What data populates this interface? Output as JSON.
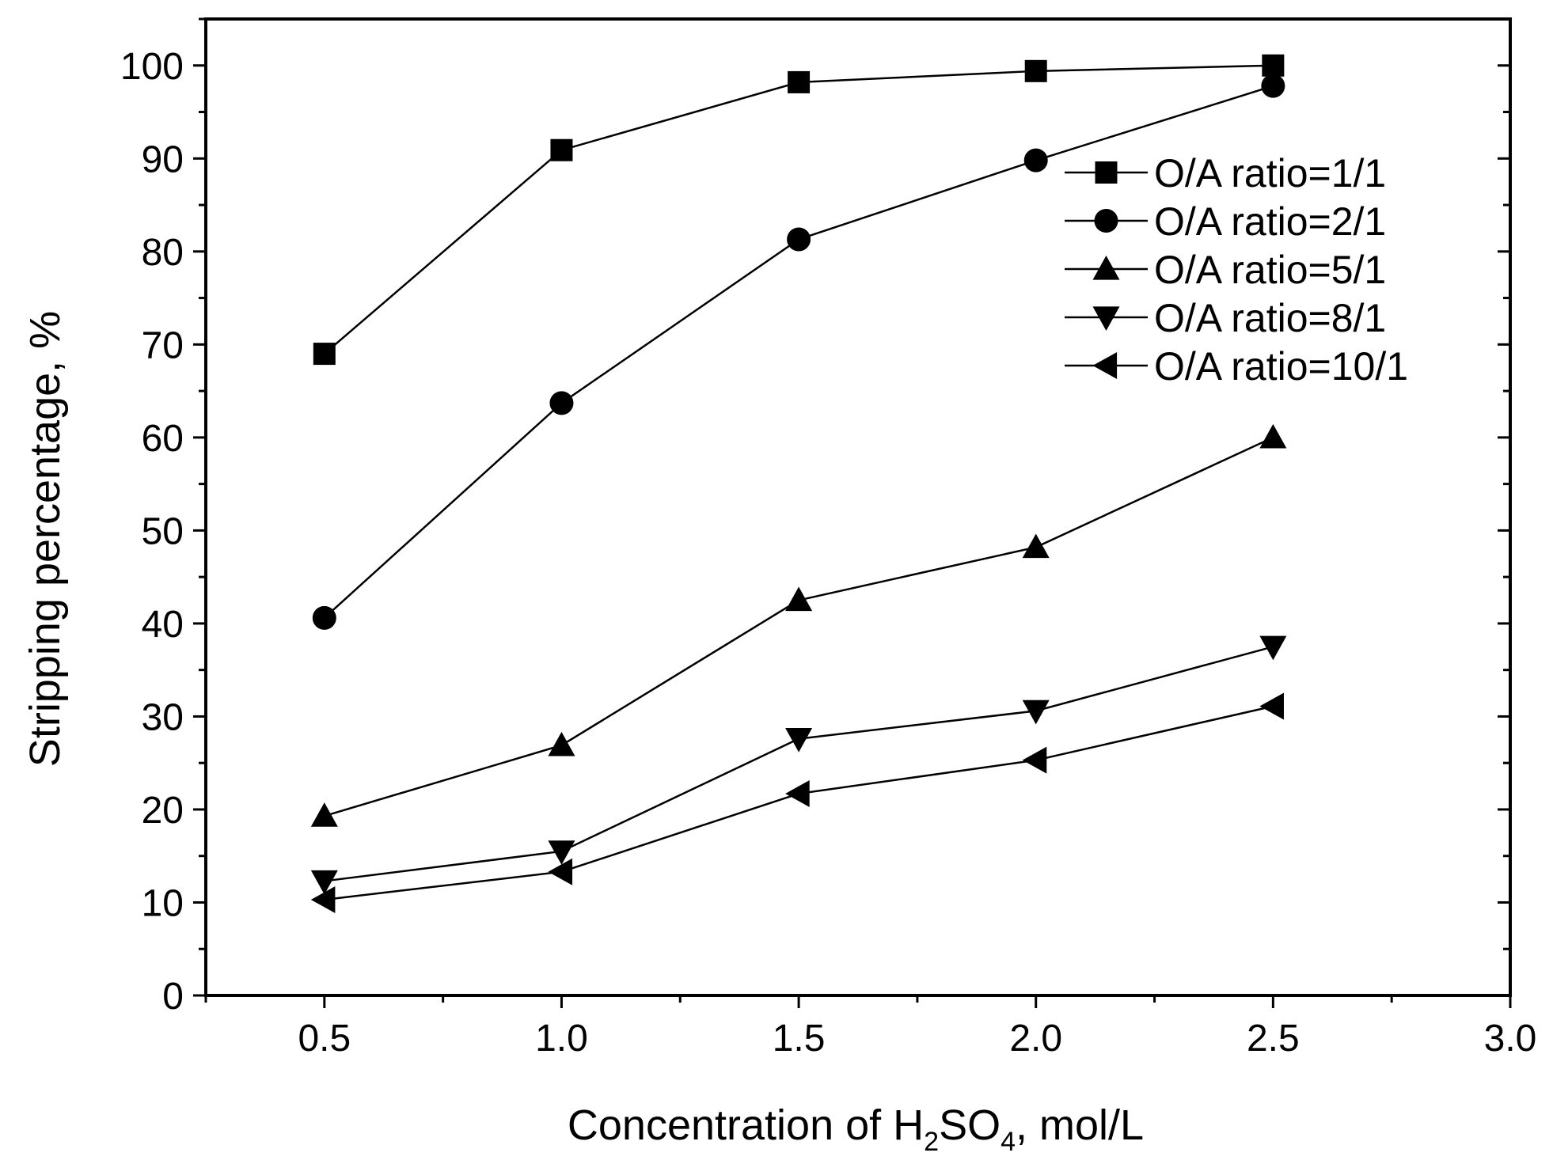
{
  "chart_data": {
    "type": "line",
    "title": "",
    "xlabel": {
      "prefix": "Concentration of H",
      "sub1": "2",
      "mid": "SO",
      "sub2": "4",
      "suffix": ", mol/L"
    },
    "ylabel": "Stripping percentage, %",
    "xlim": [
      0.25,
      3.0
    ],
    "ylim": [
      0,
      105
    ],
    "xticks": [
      0.5,
      1.0,
      1.5,
      2.0,
      2.5,
      3.0
    ],
    "xtick_labels": [
      "0.5",
      "1.0",
      "1.5",
      "2.0",
      "2.5",
      "3.0"
    ],
    "yticks": [
      0,
      10,
      20,
      30,
      40,
      50,
      60,
      70,
      80,
      90,
      100
    ],
    "ytick_labels": [
      "0",
      "10",
      "20",
      "30",
      "40",
      "50",
      "60",
      "70",
      "80",
      "90",
      "100"
    ],
    "x": [
      0.5,
      1.0,
      1.5,
      2.0,
      2.5
    ],
    "legend_position": "top-right",
    "series": [
      {
        "name": "O/A ratio=1/1",
        "marker": "square",
        "values": [
          69.0,
          90.9,
          98.2,
          99.4,
          100.0
        ]
      },
      {
        "name": "O/A ratio=2/1",
        "marker": "circle",
        "values": [
          40.6,
          63.7,
          81.3,
          89.8,
          97.8
        ]
      },
      {
        "name": "O/A ratio=5/1",
        "marker": "triangle-up",
        "values": [
          19.3,
          26.9,
          42.5,
          48.2,
          60.0
        ]
      },
      {
        "name": "O/A ratio=8/1",
        "marker": "triangle-down",
        "values": [
          12.3,
          15.5,
          27.6,
          30.6,
          37.5
        ]
      },
      {
        "name": "O/A ratio=10/1",
        "marker": "triangle-left",
        "values": [
          10.3,
          13.3,
          21.7,
          25.3,
          31.1
        ]
      }
    ]
  }
}
